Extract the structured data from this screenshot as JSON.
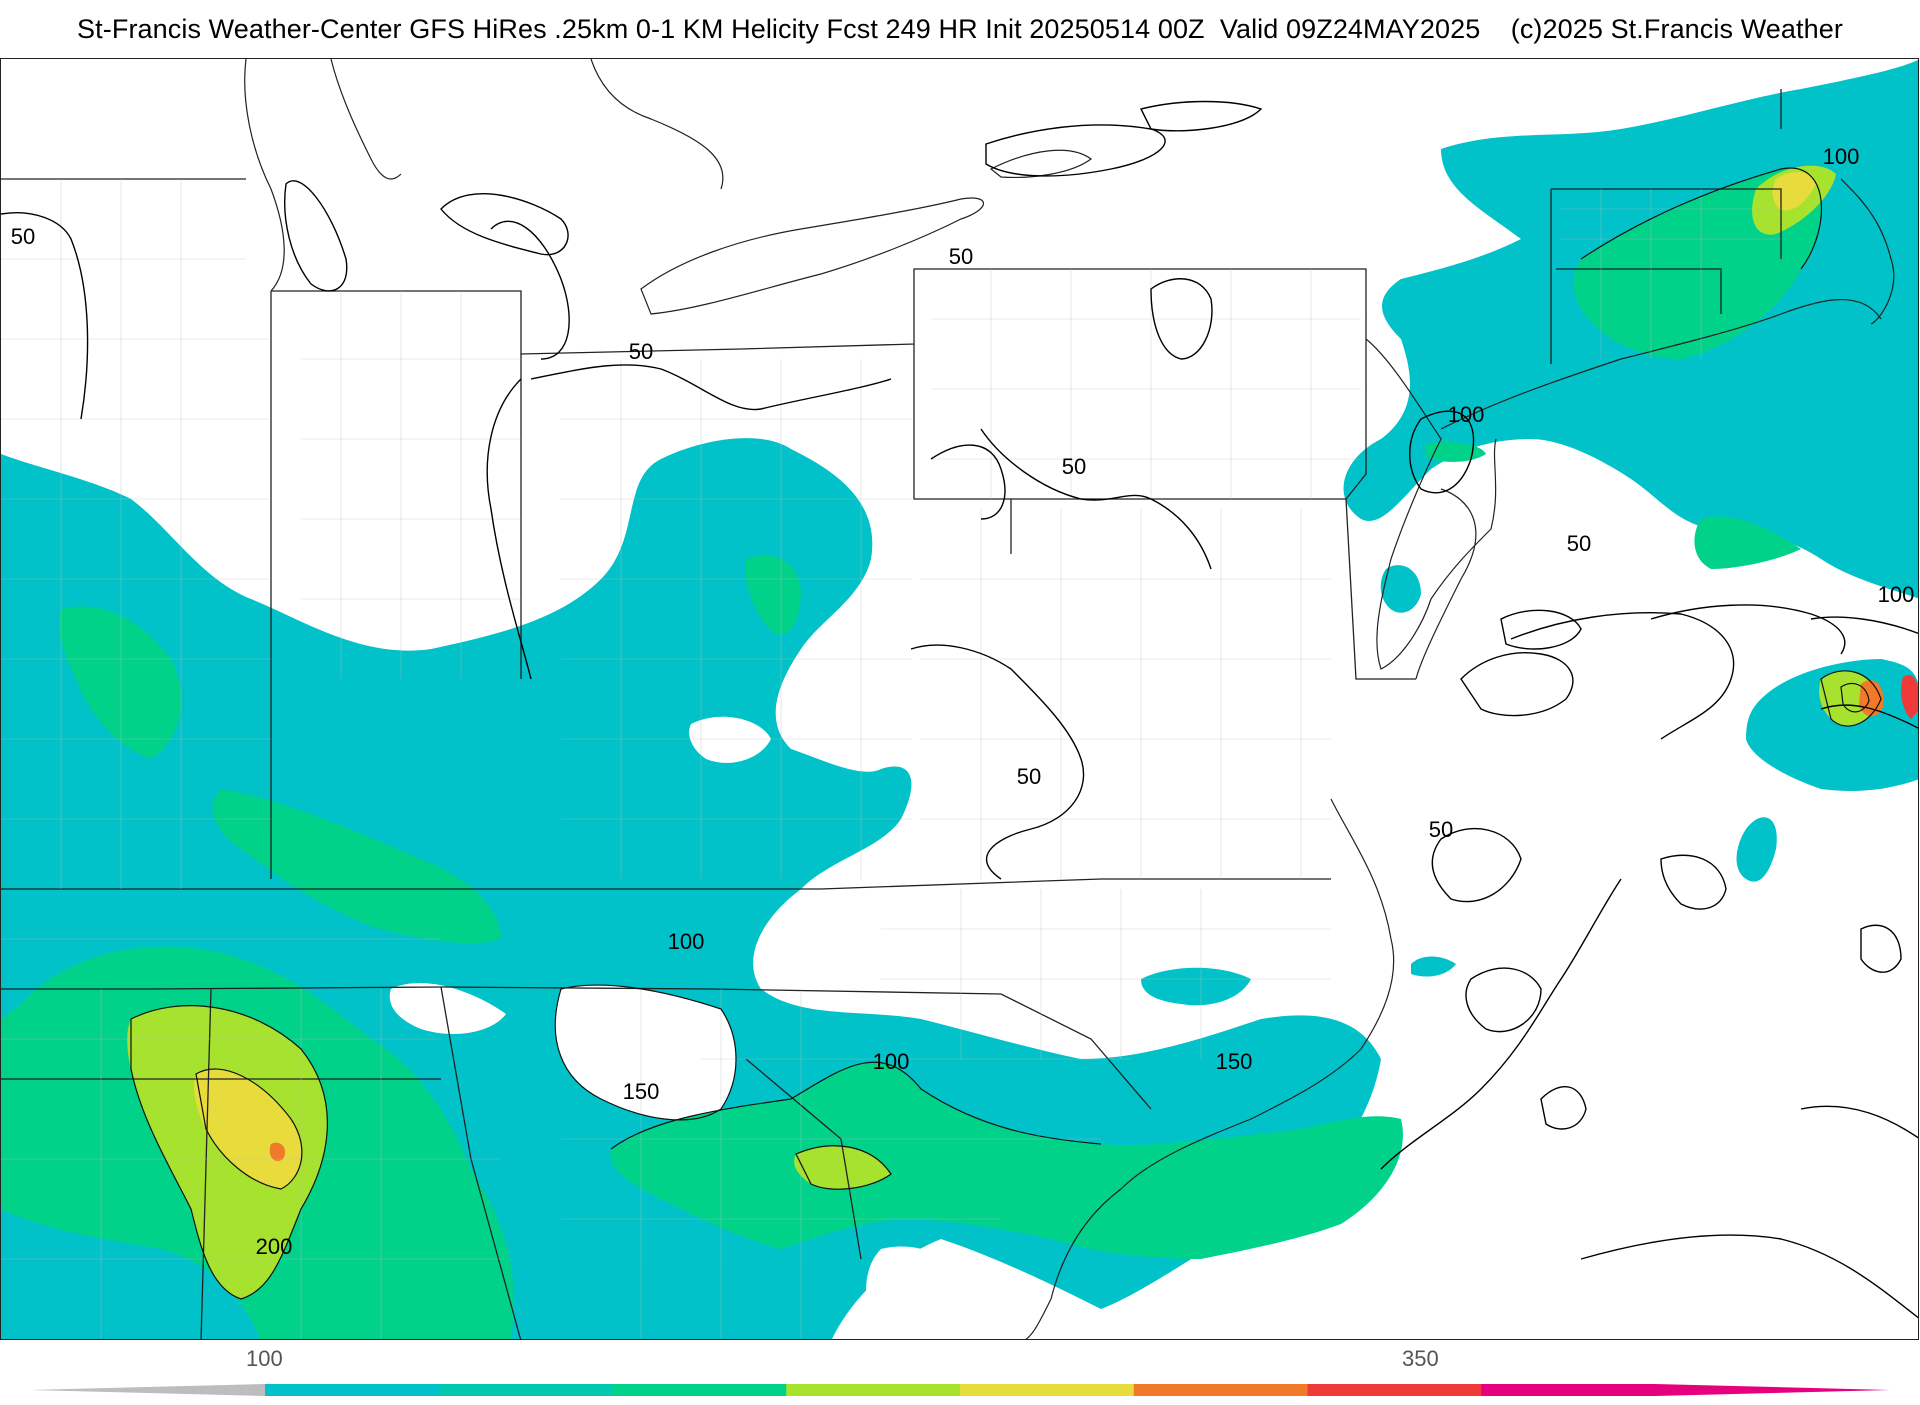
{
  "title": "St-Francis Weather-Center GFS HiRes .25km 0-1 KM Helicity Fcst 249 HR Init 20250514 00Z  Valid 09Z24MAY2025    (c)2025 St.Francis Weather",
  "colors": {
    "teal": "#00c2c8",
    "green": "#00d28a",
    "lightgreen": "#a6e22e",
    "yellow": "#e8dc3c",
    "orange": "#f07a2a",
    "red": "#f03a3a",
    "magenta": "#e6007e",
    "gray_arrow": "#bdbdbd"
  },
  "contour_labels": [
    "50",
    "50",
    "50",
    "50",
    "50",
    "50",
    "50",
    "100",
    "100",
    "100",
    "100",
    "100",
    "150",
    "150",
    "200"
  ],
  "colorbar": {
    "tick_labels": [
      "100",
      "350"
    ],
    "segments": [
      "#00c2c8",
      "#00c8b0",
      "#00d28a",
      "#a6e22e",
      "#e8dc3c",
      "#f07a2a",
      "#f03a3a",
      "#e6007e"
    ]
  }
}
